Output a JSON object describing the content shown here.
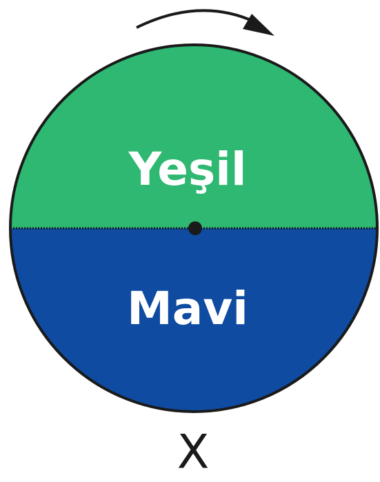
{
  "spinner": {
    "sections": [
      {
        "label": "Yeşil",
        "color": "#2eb872"
      },
      {
        "label": "Mavi",
        "color": "#0e4ba1"
      }
    ],
    "label": "X"
  }
}
